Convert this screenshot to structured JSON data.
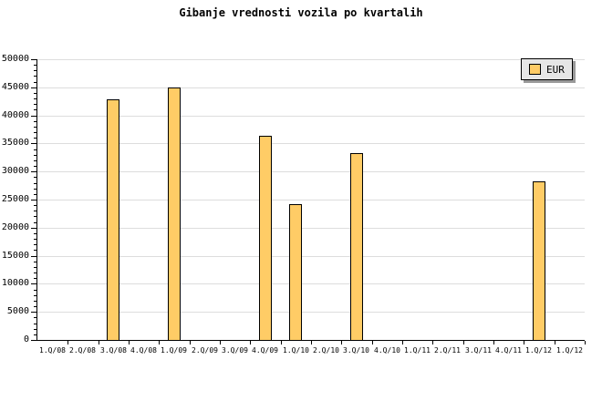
{
  "title": "Gibanje vrednosti vozila po kvartalih",
  "legend": {
    "label": "EUR"
  },
  "colors": {
    "bar_fill": "#FFCC66",
    "bar_border": "#000000",
    "gridline": "#DDDDDD",
    "axis": "#000000",
    "tick": "#000000",
    "legend_bg": "#E6E6E6",
    "legend_shadow": "#999999",
    "background": "#FFFFFF"
  },
  "chart_data": {
    "type": "bar",
    "title": "Gibanje vrednosti vozila po kvartalih",
    "series_name": "EUR",
    "categories": [
      "1.Q/08",
      "2.Q/08",
      "3.Q/08",
      "4.Q/08",
      "1.Q/09",
      "2.Q/09",
      "3.Q/09",
      "4.Q/09",
      "1.Q/10",
      "2.Q/10",
      "3.Q/10",
      "4.Q/10",
      "1.Q/11",
      "2.Q/11",
      "3.Q/11",
      "4.Q/11",
      "1.Q/12",
      "1.Q/12"
    ],
    "values": [
      null,
      null,
      42800,
      null,
      45000,
      null,
      null,
      36350,
      24150,
      null,
      33200,
      null,
      null,
      null,
      null,
      null,
      28200,
      null
    ],
    "ylim": [
      0,
      50000
    ],
    "y_major_step": 5000,
    "y_minor_step": 1000,
    "y_tick_labels": [
      "0",
      "5000",
      "10000",
      "15000",
      "20000",
      "25000",
      "30000",
      "35000",
      "40000",
      "45000",
      "50000"
    ],
    "grid": "horizontal-only",
    "legend_position": "top-right"
  }
}
